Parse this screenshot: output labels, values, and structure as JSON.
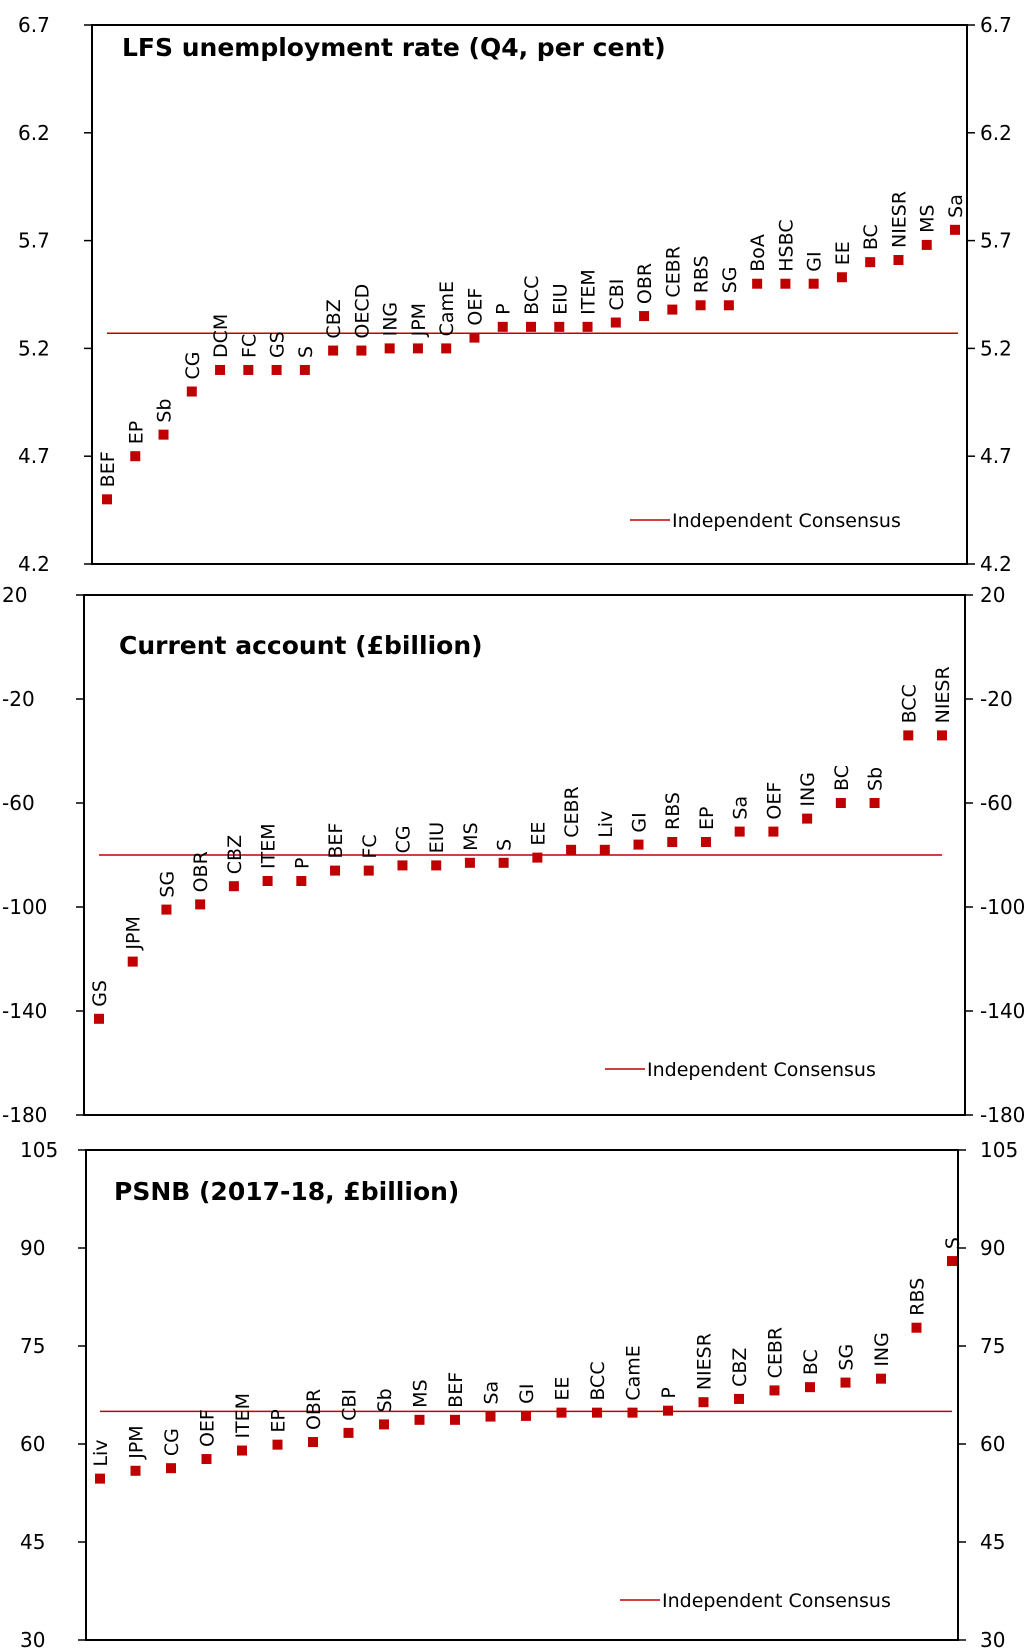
{
  "chart_data": [
    {
      "type": "scatter",
      "title": "LFS unemployment rate (Q4, per cent)",
      "ylim": [
        4.2,
        6.7
      ],
      "yticks": [
        "4.2",
        "4.7",
        "5.2",
        "5.7",
        "6.2",
        "6.7"
      ],
      "consensus": 5.27,
      "legend": "Independent Consensus",
      "legend_position": "bottom-right",
      "grid": false,
      "marker_color": "#c00000",
      "line_color": "#c00000",
      "categories": [
        "BEF",
        "EP",
        "Sb",
        "CG",
        "DCM",
        "FC",
        "GS",
        "S",
        "CBZ",
        "OECD",
        "ING",
        "JPM",
        "CamE",
        "OEF",
        "P",
        "BCC",
        "EIU",
        "ITEM",
        "CBI",
        "OBR",
        "CEBR",
        "RBS",
        "SG",
        "BoA",
        "HSBC",
        "GI",
        "EE",
        "BC",
        "NIESR",
        "MS",
        "Sa"
      ],
      "values": [
        4.5,
        4.7,
        4.8,
        5.0,
        5.1,
        5.1,
        5.1,
        5.1,
        5.19,
        5.19,
        5.2,
        5.2,
        5.2,
        5.25,
        5.3,
        5.3,
        5.3,
        5.3,
        5.32,
        5.35,
        5.38,
        5.4,
        5.4,
        5.5,
        5.5,
        5.5,
        5.53,
        5.6,
        5.61,
        5.68,
        5.75
      ]
    },
    {
      "type": "scatter",
      "title": "Current account (£billion)",
      "ylim": [
        -180,
        20
      ],
      "yticks": [
        "-180",
        "-140",
        "-100",
        "-60",
        "-20",
        "20"
      ],
      "consensus": -80,
      "legend": "Independent Consensus",
      "legend_position": "bottom-right",
      "grid": false,
      "marker_color": "#c00000",
      "line_color": "#c00000",
      "categories": [
        "GS",
        "JPM",
        "SG",
        "OBR",
        "CBZ",
        "ITEM",
        "P",
        "BEF",
        "FC",
        "CG",
        "EIU",
        "MS",
        "S",
        "EE",
        "CEBR",
        "Liv",
        "GI",
        "RBS",
        "EP",
        "Sa",
        "OEF",
        "ING",
        "BC",
        "Sb",
        "BCC",
        "NIESR"
      ],
      "values": [
        -143,
        -121,
        -101,
        -99,
        -92,
        -90,
        -90,
        -86,
        -86,
        -84,
        -84,
        -83,
        -83,
        -81,
        -78,
        -78,
        -76,
        -75,
        -75,
        -71,
        -71,
        -66,
        -60,
        -60,
        -34,
        -34
      ]
    },
    {
      "type": "scatter",
      "title": "PSNB (2017-18, £billion)",
      "ylim": [
        30,
        105
      ],
      "yticks": [
        "30",
        "45",
        "60",
        "75",
        "90",
        "105"
      ],
      "consensus": 65,
      "legend": "Independent Consensus",
      "legend_position": "bottom-right",
      "grid": false,
      "marker_color": "#c00000",
      "line_color": "#c00000",
      "categories": [
        "Liv",
        "JPM",
        "CG",
        "OEF",
        "ITEM",
        "EP",
        "OBR",
        "CBI",
        "Sb",
        "MS",
        "BEF",
        "Sa",
        "GI",
        "EE",
        "BCC",
        "CamE",
        "P",
        "NIESR",
        "CBZ",
        "CEBR",
        "BC",
        "SG",
        "ING",
        "RBS",
        "S"
      ],
      "values": [
        54.7,
        55.9,
        56.3,
        57.7,
        59,
        59.9,
        60.3,
        61.7,
        63,
        63.7,
        63.7,
        64.2,
        64.3,
        64.8,
        64.8,
        64.8,
        65.1,
        66.4,
        66.9,
        68.2,
        68.7,
        69.4,
        70,
        77.8,
        88
      ]
    }
  ]
}
